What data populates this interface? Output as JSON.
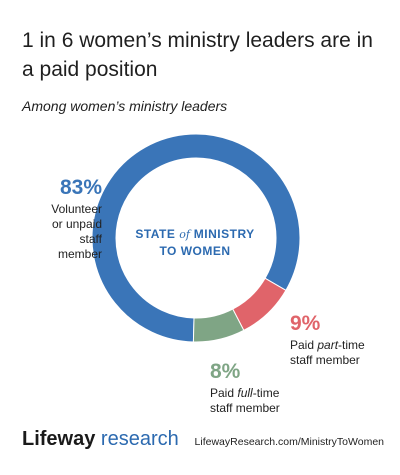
{
  "title": "1 in 6 women’s ministry leaders are in a paid position",
  "subtitle": "Among women’s ministry leaders",
  "center_label": {
    "line1_a": "STATE",
    "line1_of": "of",
    "line1_b": "MINISTRY",
    "line2": "TO WOMEN"
  },
  "labels": {
    "volunteer": {
      "pct": "83%",
      "line1": "Volunteer",
      "line2": "or unpaid",
      "line3": "staff",
      "line4": "member"
    },
    "part_time": {
      "pct": "9%",
      "line1_a": "Paid ",
      "line1_b": "part",
      "line1_c": "-time",
      "line2": "staff member"
    },
    "full_time": {
      "pct": "8%",
      "line1_a": "Paid ",
      "line1_b": "full",
      "line1_c": "-time",
      "line2": "staff member"
    }
  },
  "footer": {
    "brand": "Lifeway",
    "research": " research",
    "url": "LifewayResearch.com/MinistryToWomen"
  },
  "chart_data": {
    "type": "pie",
    "subtype": "donut",
    "slices": [
      {
        "label": "Volunteer or unpaid staff member",
        "value": 83,
        "color": "#3a75b8"
      },
      {
        "label": "Paid part-time staff member",
        "value": 9,
        "color": "#e0646a"
      },
      {
        "label": "Paid full-time staff member",
        "value": 8,
        "color": "#7fa585"
      }
    ]
  }
}
